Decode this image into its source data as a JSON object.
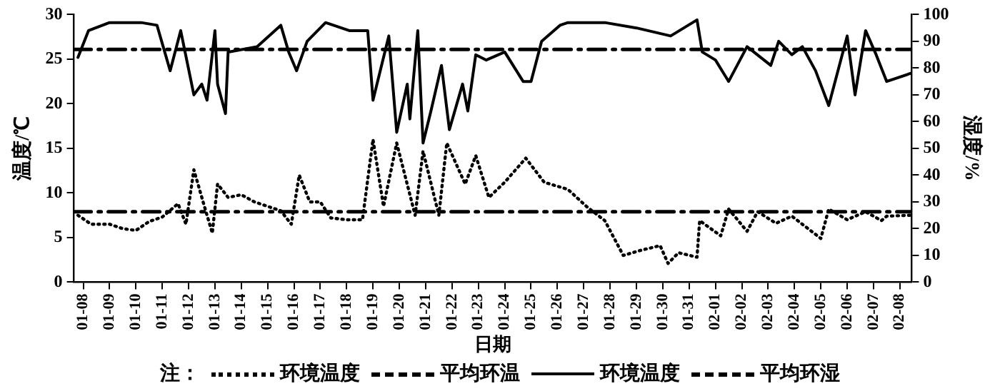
{
  "chart_data": {
    "type": "line",
    "xlabel": "日期",
    "ylabel": "温度/℃",
    "y2label": "湿度/%",
    "legend_title": "注：",
    "legend": "bottom",
    "grid": false,
    "marker": "none",
    "xlim": [
      "--01-07T15:36",
      "--02-08T10:48"
    ],
    "xticks": [
      {
        "value": "--01-08",
        "label": "01-08"
      },
      {
        "value": "--01-09",
        "label": "01-09"
      },
      {
        "value": "--01-10",
        "label": "01-10"
      },
      {
        "value": "--01-11",
        "label": "01-11"
      },
      {
        "value": "--01-12",
        "label": "01-12"
      },
      {
        "value": "--01-13",
        "label": "01-13"
      },
      {
        "value": "--01-14",
        "label": "01-14"
      },
      {
        "value": "--01-15",
        "label": "01-15"
      },
      {
        "value": "--01-16",
        "label": "01-16"
      },
      {
        "value": "--01-17",
        "label": "01-17"
      },
      {
        "value": "--01-18",
        "label": "01-18"
      },
      {
        "value": "--01-19",
        "label": "01-19"
      },
      {
        "value": "--01-20",
        "label": "01-20"
      },
      {
        "value": "--01-21",
        "label": "01-21"
      },
      {
        "value": "--01-22",
        "label": "01-22"
      },
      {
        "value": "--01-23",
        "label": "01-23"
      },
      {
        "value": "--01-24",
        "label": "01-24"
      },
      {
        "value": "--01-25",
        "label": "01-25"
      },
      {
        "value": "--01-26",
        "label": "01-26"
      },
      {
        "value": "--01-27",
        "label": "01-27"
      },
      {
        "value": "--01-28",
        "label": "01-28"
      },
      {
        "value": "--01-29",
        "label": "01-29"
      },
      {
        "value": "--01-30",
        "label": "01-30"
      },
      {
        "value": "--01-31",
        "label": "01-31"
      },
      {
        "value": "--02-01",
        "label": "02-01"
      },
      {
        "value": "--02-02",
        "label": "02-02"
      },
      {
        "value": "--02-03",
        "label": "02-03"
      },
      {
        "value": "--02-04",
        "label": "02-04"
      },
      {
        "value": "--02-05",
        "label": "02-05"
      },
      {
        "value": "--02-06",
        "label": "02-06"
      },
      {
        "value": "--02-07",
        "label": "02-07"
      },
      {
        "value": "--02-08",
        "label": "02-08"
      }
    ],
    "ylim": [
      0,
      30
    ],
    "yticks": [
      0,
      5,
      10,
      15,
      20,
      25,
      30
    ],
    "y2lim": [
      0,
      100
    ],
    "y2ticks": [
      0,
      10,
      20,
      30,
      40,
      50,
      60,
      70,
      80,
      90,
      100
    ],
    "series": [
      {
        "name": "环境温度",
        "type": "line",
        "axis": "y",
        "line_style": "dotted",
        "color": "#000000",
        "x": [
          "--01-07T19:12",
          "--01-08T07:12",
          "--01-09",
          "--01-09T12:00",
          "--01-10",
          "--01-10T12:00",
          "--01-11",
          "--01-11T14:24",
          "--01-11T21:36",
          "--01-12T04:48",
          "--01-12T14:24",
          "--01-12T21:36",
          "--01-13T02:24",
          "--01-13T12:00",
          "--01-14",
          "--01-14T12:00",
          "--01-15",
          "--01-15T12:00",
          "--01-15T21:36",
          "--01-16T04:48",
          "--01-16T14:24",
          "--01-17",
          "--01-17T09:36",
          "--01-18",
          "--01-18T14:24",
          "--01-19",
          "--01-19T09:36",
          "--01-19T21:36",
          "--01-20T14:24",
          "--01-20T21:36",
          "--01-21T12:00",
          "--01-21T19:12",
          "--01-22T12:00",
          "--01-22T21:36",
          "--01-23T09:36",
          "--01-24",
          "--01-24T19:12",
          "--01-25T12:00",
          "--01-26T09:36",
          "--01-27T02:24",
          "--01-27T19:12",
          "--01-28T12:00",
          "--01-29T04:48",
          "--01-29T21:36",
          "--01-30T04:48",
          "--01-30T14:24",
          "--01-31T07:12",
          "--01-31T09:36",
          "--02-01T04:48",
          "--02-01T12:00",
          "--02-02T04:48",
          "--02-02T14:24",
          "--02-03T07:12",
          "--02-03T21:36",
          "--02-05",
          "--02-05T07:12",
          "--02-06",
          "--02-06T16:48",
          "--02-07T07:12",
          "--02-07T12:00",
          "--02-08T09:36"
        ],
        "values": [
          7.5,
          6.5,
          6.5,
          6,
          5.8,
          6.8,
          7.3,
          8.8,
          6.5,
          12.6,
          8.5,
          5.5,
          11,
          9.5,
          9.8,
          9,
          8.5,
          8,
          6.5,
          12,
          9,
          9,
          7.2,
          7,
          7,
          16,
          8.5,
          15.6,
          7.5,
          14.7,
          7.5,
          15.6,
          11,
          14.2,
          9.5,
          11.2,
          13.9,
          11.2,
          10.4,
          8.5,
          6.9,
          3,
          3.6,
          4.1,
          2.1,
          3.3,
          2.8,
          6.9,
          5.2,
          8.2,
          5.7,
          7.9,
          6.6,
          7.4,
          4.9,
          8.2,
          7,
          7.9,
          6.9,
          7.4,
          7.5
        ]
      },
      {
        "name": "平均环温",
        "type": "line",
        "axis": "y",
        "line_style": "dashed",
        "color": "#000000",
        "x": [
          "--01-07T15:36",
          "--02-08T10:48"
        ],
        "values": [
          7.9,
          7.9
        ]
      },
      {
        "name": "环境温度",
        "type": "line",
        "axis": "y2",
        "line_style": "solid",
        "color": "#000000",
        "x": [
          "--01-07T19:12",
          "--01-08T04:48",
          "--01-09",
          "--01-10T04:48",
          "--01-10T19:12",
          "--01-11T07:12",
          "--01-11T16:48",
          "--01-12T04:48",
          "--01-12T12:00",
          "--01-12T16:48",
          "--01-13",
          "--01-13T02:24",
          "--01-13T09:36",
          "--01-13T12:00",
          "--01-14T14:24",
          "--01-15T12:00",
          "--01-15T19:12",
          "--01-16T02:24",
          "--01-16T12:00",
          "--01-17T04:48",
          "--01-18T02:24",
          "--01-18T19:12",
          "--01-19",
          "--01-19T14:24",
          "--01-19T21:36",
          "--01-20T07:12",
          "--01-20T09:36",
          "--01-20T16:48",
          "--01-20T21:36",
          "--01-21T04:48",
          "--01-21T14:24",
          "--01-21T21:36",
          "--01-22T09:36",
          "--01-22T14:24",
          "--01-22T21:36",
          "--01-23T07:12",
          "--01-24",
          "--01-24T16:48",
          "--01-25",
          "--01-25T09:36",
          "--01-26T02:24",
          "--01-26T09:36",
          "--01-27T19:12",
          "--01-29",
          "--01-30T07:12",
          "--01-31T07:12",
          "--01-31T12:00",
          "--02-01",
          "--02-01T12:00",
          "--02-02T04:48",
          "--02-03T02:24",
          "--02-03T09:36",
          "--02-03T21:36",
          "--02-04T07:12",
          "--02-04T19:12",
          "--02-05T07:12",
          "--02-06",
          "--02-06T07:12",
          "--02-06T16:48",
          "--02-07T02:24",
          "--02-07T12:00",
          "--02-08T09:36"
        ],
        "values": [
          84,
          94,
          97,
          97,
          96,
          79,
          94,
          70,
          74,
          68,
          94,
          74,
          63,
          86,
          88,
          96,
          86,
          79,
          90,
          97,
          94,
          94,
          68,
          92,
          56,
          74,
          61,
          94,
          52,
          64,
          81,
          57,
          74,
          64,
          85,
          83,
          86,
          75,
          75,
          90,
          96,
          97,
          97,
          95,
          92,
          98,
          86,
          83,
          75,
          88,
          81,
          90,
          85,
          88,
          79,
          66,
          92,
          70,
          94,
          85,
          75,
          78
        ]
      },
      {
        "name": "平均环湿",
        "type": "line",
        "axis": "y2",
        "line_style": "dashed",
        "color": "#000000",
        "x": [
          "--01-07T15:36",
          "--02-08T10:48"
        ],
        "values": [
          87,
          87
        ]
      }
    ]
  }
}
